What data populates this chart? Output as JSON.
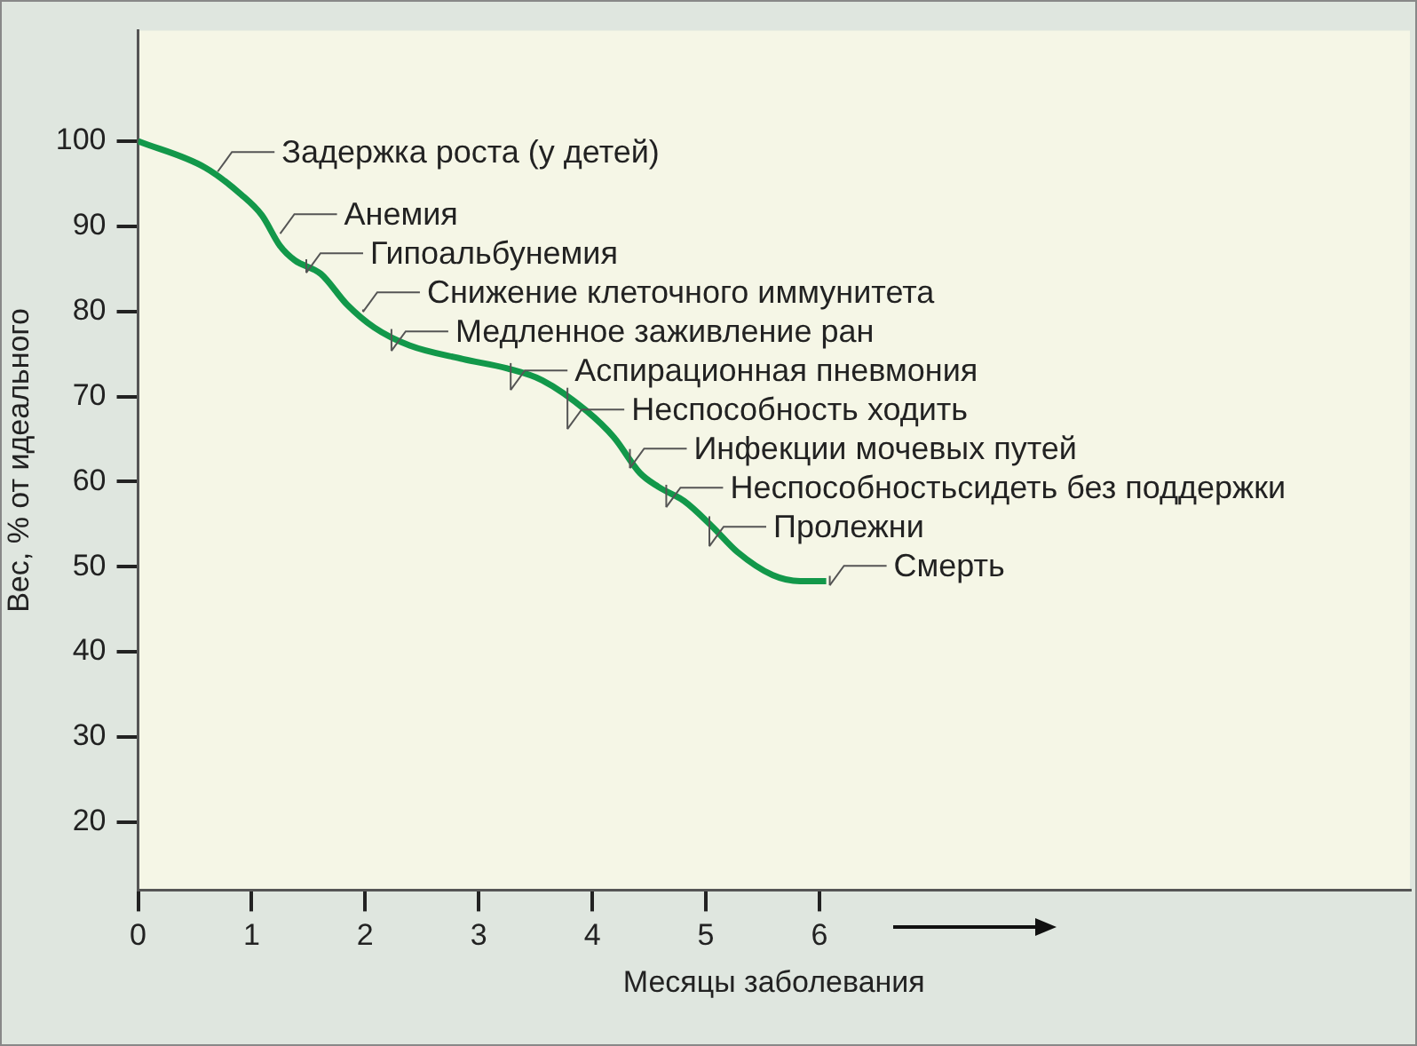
{
  "chart_data": {
    "type": "line",
    "xlabel": "Месяцы заболевания",
    "ylabel": "Вес, % от идеального",
    "x": [
      0,
      0.59,
      0.91,
      1.09,
      1.25,
      1.38,
      1.61,
      1.84,
      2.08,
      2.39,
      2.86,
      3.25,
      3.56,
      3.95,
      4.19,
      4.42,
      4.58,
      4.81,
      5.05,
      5.28,
      5.59,
      5.83,
      6.06
    ],
    "series": [
      {
        "color": "#12984a",
        "values": [
          100,
          96.9,
          93.7,
          91.3,
          87.7,
          86,
          84.4,
          80.8,
          78.1,
          76,
          74.4,
          73.3,
          71.9,
          68.3,
          65.2,
          61,
          59.4,
          57.7,
          54.8,
          51.7,
          49,
          48.3,
          48.3
        ]
      }
    ],
    "xlim": [
      0,
      11.2
    ],
    "xticks": [
      0,
      1,
      2,
      3,
      4,
      5,
      6
    ],
    "ylim": [
      12,
      113
    ],
    "yticks": [
      20,
      30,
      40,
      50,
      60,
      70,
      80,
      90,
      100
    ],
    "grid": false,
    "legend": false,
    "marker": "none",
    "line_style": "solid",
    "annotations": [
      {
        "text": "Задержка роста (у детей)",
        "x": 0.67,
        "y": 95.8
      },
      {
        "text": "Анемия",
        "x": 1.22,
        "y": 88.5
      },
      {
        "text": "Гипоальбунемия",
        "x": 1.45,
        "y": 85.5
      },
      {
        "text": "Снижение клеточного иммунитета",
        "x": 1.95,
        "y": 79.6
      },
      {
        "text": "Медленное заживление ран",
        "x": 2.2,
        "y": 77.3
      },
      {
        "text": "Аспирационная пневмония",
        "x": 3.25,
        "y": 73.3
      },
      {
        "text": "Неспособность ходить",
        "x": 3.75,
        "y": 70.4
      },
      {
        "text": "Инфекции мочевых путей",
        "x": 4.3,
        "y": 63.2
      },
      {
        "text": "Неспособностьсидеть без поддержки",
        "x": 4.62,
        "y": 59
      },
      {
        "text": "Пролежни",
        "x": 5.0,
        "y": 55.3
      },
      {
        "text": "Смерть",
        "x": 6.06,
        "y": 48.3
      }
    ]
  }
}
